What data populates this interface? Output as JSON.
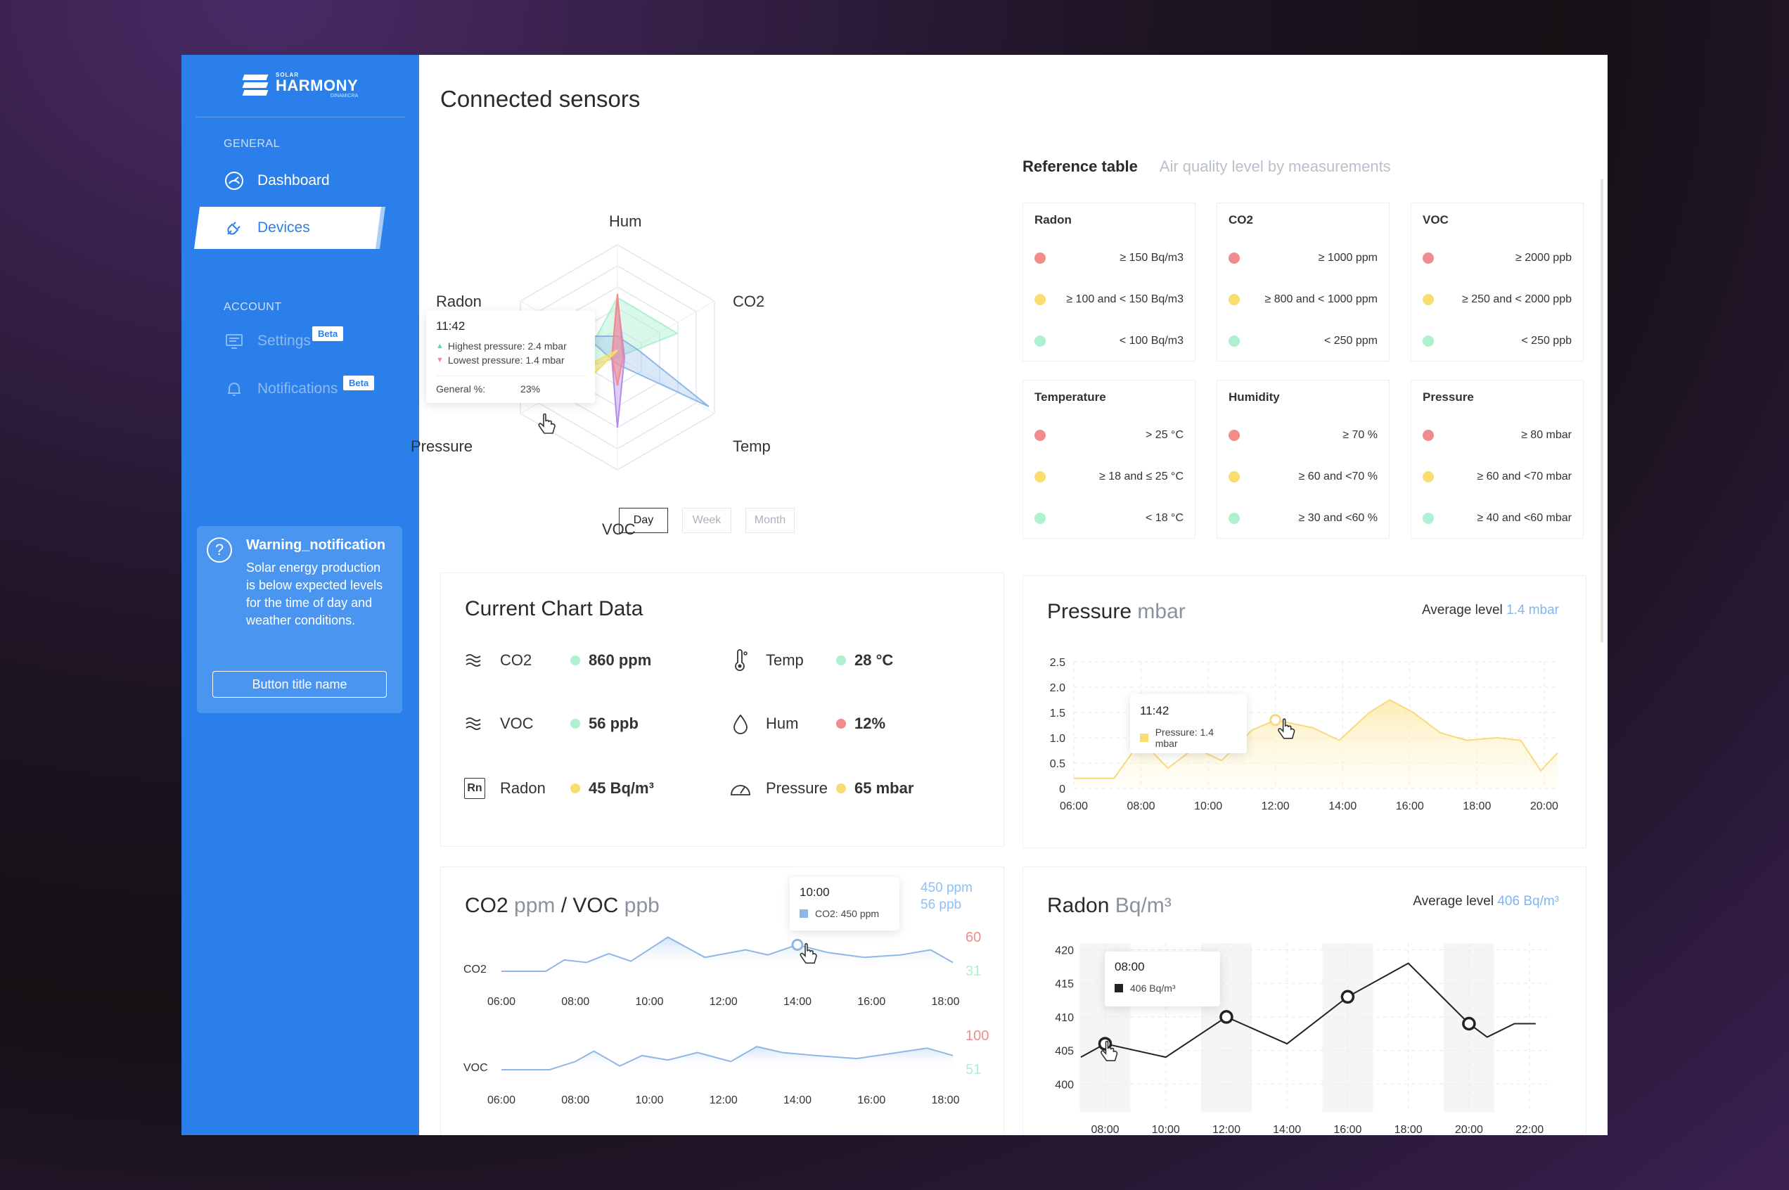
{
  "brand": {
    "sub": "SOLAR",
    "name": "HARMONY",
    "tag": "DINAMICRA"
  },
  "sidebar": {
    "general_label": "GENERAL",
    "account_label": "ACCOUNT",
    "items": [
      {
        "label": "Dashboard"
      },
      {
        "label": "Devices"
      },
      {
        "label": "Settings",
        "badge": "Beta"
      },
      {
        "label": "Notifications",
        "badge": "Beta"
      }
    ],
    "warning": {
      "title": "Warning_notification",
      "text": "Solar energy production is below expected levels for the time of day and weather conditions.",
      "button": "Button title name"
    }
  },
  "page": {
    "title": "Connected sensors"
  },
  "radar": {
    "labels": {
      "hum": "Hum",
      "co2": "CO2",
      "temp": "Temp",
      "voc": "VOC",
      "pressure": "Pressure",
      "radon": "Radon"
    },
    "tooltip": {
      "time": "11:42",
      "highest": "Highest pressure: 2.4 mbar",
      "lowest": "Lowest pressure: 1.4 mbar",
      "general_label": "General %:",
      "general_value": "23%"
    },
    "ranges": [
      "Day",
      "Week",
      "Month"
    ],
    "selected_range": "Day"
  },
  "reference": {
    "title": "Reference table",
    "subtitle": "Air quality level by measurements",
    "cards": [
      {
        "name": "Radon",
        "rows": [
          "≥ 150 Bq/m3",
          "≥ 100 and < 150 Bq/m3",
          "< 100 Bq/m3"
        ]
      },
      {
        "name": "CO2",
        "rows": [
          "≥ 1000 ppm",
          "≥ 800 and < 1000 ppm",
          "< 250 ppm"
        ]
      },
      {
        "name": "VOC",
        "rows": [
          "≥ 2000 ppb",
          "≥ 250 and < 2000 ppb",
          "< 250 ppb"
        ]
      },
      {
        "name": "Temperature",
        "rows": [
          "> 25 °C",
          "≥ 18 and ≤ 25 °C",
          "< 18 °C"
        ]
      },
      {
        "name": "Humidity",
        "rows": [
          "≥ 70 %",
          "≥ 60 and <70 %",
          "≥ 30 and <60 %"
        ]
      },
      {
        "name": "Pressure",
        "rows": [
          "≥ 80 mbar",
          "≥ 60 and <70 mbar",
          "≥ 40 and <60 mbar"
        ]
      }
    ],
    "colors": {
      "high": "#f28c8c",
      "mid": "#f9dd6f",
      "low": "#aef0cf"
    }
  },
  "current": {
    "title": "Current Chart Data",
    "items": [
      {
        "label": "CO2",
        "value": "860 ppm",
        "status": "low",
        "icon": "waves-icon"
      },
      {
        "label": "Temp",
        "value": "28 °C",
        "status": "low",
        "icon": "thermometer-icon"
      },
      {
        "label": "VOC",
        "value": "56 ppb",
        "status": "low",
        "icon": "waves-icon"
      },
      {
        "label": "Hum",
        "value": "12%",
        "status": "high",
        "icon": "drop-icon"
      },
      {
        "label": "Radon",
        "value": "45 Bq/m³",
        "status": "mid",
        "icon": "radon-icon",
        "icon_text": "Rn"
      },
      {
        "label": "Pressure",
        "value": "65 mbar",
        "status": "mid",
        "icon": "gauge-icon"
      }
    ]
  },
  "pressure_card": {
    "title": "Pressure",
    "unit": "mbar",
    "avg_label": "Average level",
    "avg_value": "1.4 mbar",
    "tooltip": {
      "time": "11:42",
      "text": "Pressure: 1.4 mbar"
    }
  },
  "co2voc_card": {
    "title_a": "CO2",
    "unit_a": "ppm",
    "title_b": "/ VOC",
    "unit_b": "ppb",
    "legend_a": "450 ppm",
    "legend_b": "56 ppb",
    "tooltip": {
      "time": "10:00",
      "text": "CO2: 450 ppm"
    },
    "co2_label": "CO2",
    "voc_label": "VOC",
    "co2_max": "60",
    "co2_min": "31",
    "voc_max": "100",
    "voc_min": "51"
  },
  "radon_card": {
    "title": "Radon",
    "unit": "Bq/m³",
    "avg_label": "Average level",
    "avg_value": "406 Bq/m³",
    "tooltip": {
      "time": "08:00",
      "text": "406 Bq/m³"
    }
  },
  "chart_data": [
    {
      "type": "area",
      "title": "Pressure mbar",
      "categories": [
        "06:00",
        "08:00",
        "10:00",
        "12:00",
        "14:00",
        "16:00",
        "18:00",
        "20:00"
      ],
      "y_ticks": [
        "2.5",
        "2.0",
        "1.5",
        "1.0",
        "0.5",
        "0"
      ],
      "ylim": [
        0,
        2.5
      ],
      "x": [
        6,
        7.2,
        8,
        8.8,
        9.6,
        10.4,
        11.3,
        12,
        13.1,
        13.9,
        14.8,
        15.4,
        16.1,
        16.9,
        17.7,
        18.6,
        19.3,
        19.9,
        20.4
      ],
      "values": [
        0.2,
        0.2,
        0.95,
        0.4,
        0.8,
        0.55,
        1.15,
        1.35,
        1.2,
        0.95,
        1.5,
        1.75,
        1.5,
        1.1,
        0.95,
        1.0,
        0.95,
        0.35,
        0.7
      ]
    },
    {
      "type": "line",
      "title": "CO2 ppm",
      "categories": [
        "06:00",
        "08:00",
        "10:00",
        "12:00",
        "14:00",
        "16:00",
        "18:00"
      ],
      "x": [
        6,
        6.5,
        7.2,
        7.7,
        8.3,
        8.9,
        9.5,
        10.5,
        11.5,
        12.6,
        13.2,
        14,
        14.8,
        15.8,
        16.8,
        17.6,
        18.2
      ],
      "values": [
        31,
        31,
        31,
        40,
        38,
        45,
        39,
        58,
        42,
        48,
        44,
        52,
        46,
        42,
        44,
        48,
        38
      ],
      "ylim": [
        31,
        60
      ]
    },
    {
      "type": "line",
      "title": "VOC ppb",
      "categories": [
        "06:00",
        "08:00",
        "10:00",
        "12:00",
        "14:00",
        "16:00",
        "18:00"
      ],
      "x": [
        6,
        6.8,
        7.3,
        8,
        8.5,
        9.2,
        9.8,
        10.5,
        11.3,
        12.2,
        12.9,
        13.6,
        14.5,
        15.6,
        16.7,
        17.5,
        18.2
      ],
      "values": [
        51,
        51,
        51,
        62,
        76,
        56,
        70,
        64,
        74,
        62,
        82,
        74,
        70,
        66,
        74,
        80,
        70
      ],
      "ylim": [
        51,
        100
      ]
    },
    {
      "type": "line",
      "title": "Radon Bq/m³",
      "categories": [
        "08:00",
        "10:00",
        "12:00",
        "14:00",
        "16:00",
        "18:00",
        "20:00",
        "22:00"
      ],
      "y_ticks": [
        "420",
        "415",
        "410",
        "405",
        "400"
      ],
      "ylim": [
        400,
        420
      ],
      "x": [
        7.2,
        8,
        10,
        12,
        14,
        16,
        18,
        20,
        20.6,
        21.5,
        22.2
      ],
      "values": [
        404,
        406,
        404,
        410,
        406,
        413,
        418,
        409,
        407,
        409,
        409
      ],
      "markers_at": [
        8,
        12,
        16,
        20
      ]
    }
  ]
}
